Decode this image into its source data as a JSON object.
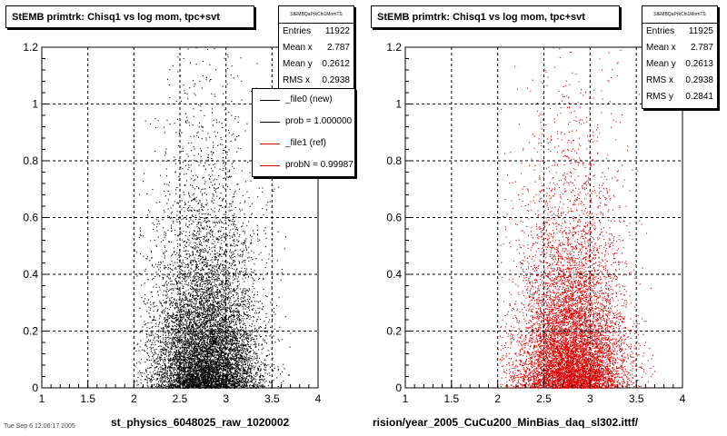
{
  "chart_data": [
    {
      "type": "scatter",
      "title": "StEMB primtrk: Chisq1 vs log mom, tpc+svt",
      "xlabel": "",
      "ylabel": "",
      "xlim": [
        1,
        4
      ],
      "ylim": [
        0,
        1.2
      ],
      "x_ticks": [
        "1",
        "1.5",
        "2",
        "2.5",
        "3",
        "3.5",
        "4"
      ],
      "y_ticks": [
        "0",
        "0.2",
        "0.4",
        "0.6",
        "0.8",
        "1",
        "1.2"
      ],
      "grid": true,
      "marker_color": "#000000",
      "distribution": {
        "x_range": [
          2.0,
          3.7
        ],
        "y_range": [
          0,
          1.2
        ],
        "center_x": 2.787,
        "mean_y": 0.2612,
        "rms_x": 0.2938,
        "dense_near_y": 0.0
      },
      "stats": {
        "name": "StEMBQaPrkChi1MomTS",
        "entries": "11922",
        "mean_x": "2.787",
        "mean_y": "0.2612",
        "rms_x": "0.2938"
      },
      "legend": {
        "position": "top-right",
        "entries": [
          {
            "label": "_file0 (new)",
            "color": "#000000"
          },
          {
            "label": "prob = 1.000000",
            "color": "#000000"
          },
          {
            "label": "_file1 (ref)",
            "color": "#cc0000"
          },
          {
            "label": "probN = 0.99987",
            "color": "#cc0000"
          }
        ]
      }
    },
    {
      "type": "scatter",
      "title": "StEMB primtrk: Chisq1 vs log mom, tpc+svt",
      "xlabel": "",
      "ylabel": "",
      "xlim": [
        1,
        4
      ],
      "ylim": [
        0,
        1.2
      ],
      "x_ticks": [
        "1",
        "1.5",
        "2",
        "2.5",
        "3",
        "3.5",
        "4"
      ],
      "y_ticks": [
        "0",
        "0.2",
        "0.4",
        "0.6",
        "0.8",
        "1",
        "1.2"
      ],
      "grid": true,
      "marker_color": "#dd0000",
      "distribution": {
        "x_range": [
          2.0,
          3.7
        ],
        "y_range": [
          0,
          1.2
        ],
        "center_x": 2.787,
        "mean_y": 0.2613,
        "rms_x": 0.2938,
        "dense_near_y": 0.0
      },
      "stats": {
        "name": "StEMBQaPrkChi1MomTS",
        "entries": "11925",
        "mean_x": "2.787",
        "mean_y": "0.2613",
        "rms_x": "0.2938",
        "rms_y": "0.2841"
      }
    }
  ],
  "labels": {
    "entries": "Entries",
    "mean_x": "Mean x",
    "mean_y": "Mean y",
    "rms_x": "RMS x",
    "rms_y": "RMS y"
  },
  "footer": {
    "left_file": "st_physics_6048025_raw_1020002",
    "right_path": "rision/year_2005_CuCu200_MinBias_daq_sl302.ittf/",
    "stamp": "Tue Sep 6 12:06:17 2005"
  }
}
